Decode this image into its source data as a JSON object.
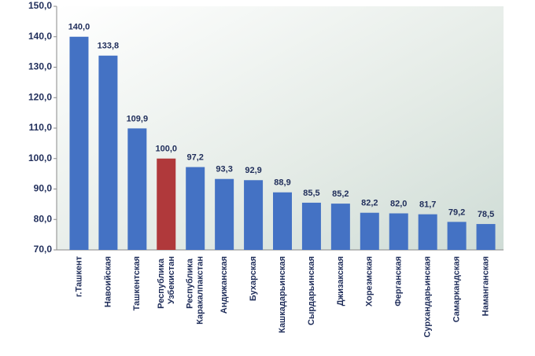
{
  "chart_data": {
    "type": "bar",
    "categories": [
      "г.Ташкент",
      "Навоийская",
      "Ташкентская",
      "Республика Узбекистан",
      "Республика Каракалпакстан",
      "Андижанская",
      "Бухарская",
      "Кашкадарьинская",
      "Сырдарьинская",
      "Джизакская",
      "Хорезмская",
      "Ферганская",
      "Сурхандарьинская",
      "Самаркандская",
      "Наманганская"
    ],
    "values": [
      140.0,
      133.8,
      109.9,
      100.0,
      97.2,
      93.3,
      92.9,
      88.9,
      85.5,
      85.2,
      82.2,
      82.0,
      81.7,
      79.2,
      78.5
    ],
    "value_labels": [
      "140,0",
      "133,8",
      "109,9",
      "100,0",
      "97,2",
      "93,3",
      "92,9",
      "88,9",
      "85,5",
      "85,2",
      "82,2",
      "82,0",
      "81,7",
      "79,2",
      "78,5"
    ],
    "colors": [
      "#4472c4",
      "#4472c4",
      "#4472c4",
      "#b0393b",
      "#4472c4",
      "#4472c4",
      "#4472c4",
      "#4472c4",
      "#4472c4",
      "#4472c4",
      "#4472c4",
      "#4472c4",
      "#4472c4",
      "#4472c4",
      "#4472c4"
    ],
    "ylim": [
      70,
      150
    ],
    "yticks": [
      {
        "value": 70,
        "label": "70,0"
      },
      {
        "value": 80,
        "label": "80,0"
      },
      {
        "value": 90,
        "label": "90,0"
      },
      {
        "value": 100,
        "label": "100,0"
      },
      {
        "value": 110,
        "label": "110,0"
      },
      {
        "value": 120,
        "label": "120,0"
      },
      {
        "value": 130,
        "label": "130,0"
      },
      {
        "value": 140,
        "label": "140,0"
      },
      {
        "value": 150,
        "label": "150,0"
      }
    ]
  }
}
